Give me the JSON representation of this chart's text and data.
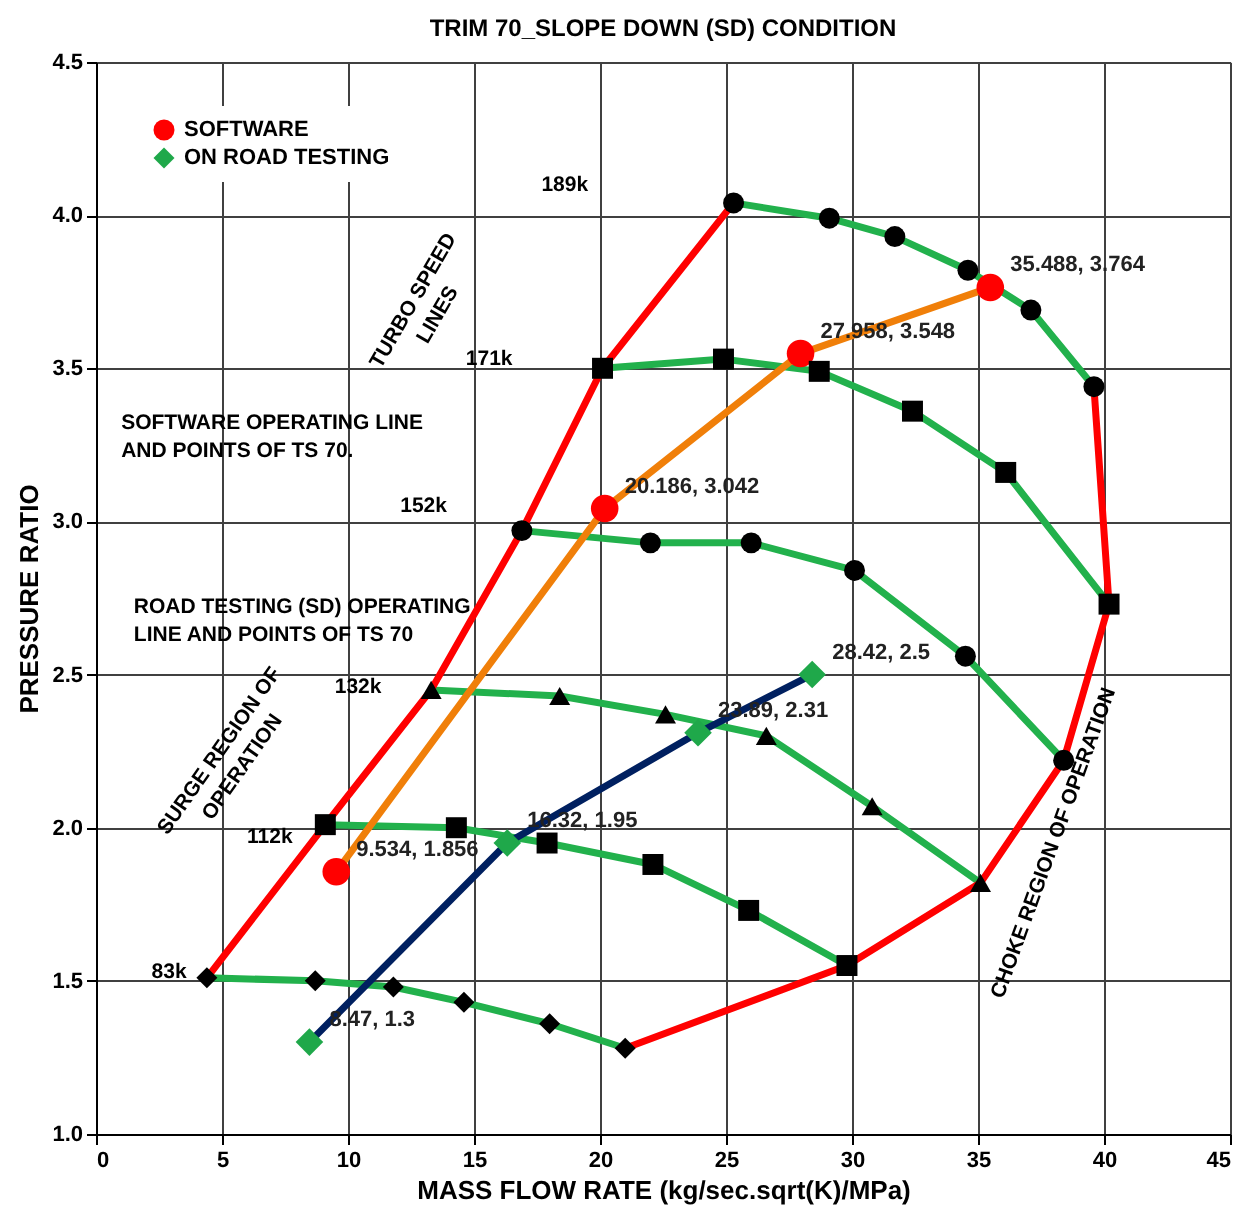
{
  "chart_data": {
    "type": "line",
    "title": "TRIM  70_SLOPE DOWN (SD) CONDITION",
    "xlabel": "MASS FLOW RATE (kg/sec.sqrt(K)/MPa)",
    "ylabel": "PRESSURE RATIO",
    "xlim": [
      0,
      45
    ],
    "xticks": [
      0,
      5,
      10,
      15,
      20,
      25,
      30,
      35,
      40,
      45
    ],
    "ylim": [
      1.0,
      4.5
    ],
    "yticks": [
      {
        "value": 1.0,
        "label": "1.0"
      },
      {
        "value": 1.5,
        "label": "1.5"
      },
      {
        "value": 2.0,
        "label": "2.0"
      },
      {
        "value": 2.5,
        "label": "2.5"
      },
      {
        "value": 3.0,
        "label": "3.0"
      },
      {
        "value": 3.5,
        "label": "3.5"
      },
      {
        "value": 4.0,
        "label": "4.0"
      },
      {
        "value": 4.5,
        "label": "4.5"
      }
    ],
    "grid": true,
    "legend": "top left",
    "line_style": "solid",
    "series": [
      {
        "color": "#22b14c",
        "colors": [
          "#000000",
          "#000000",
          "#000000",
          "#000000",
          "#000000",
          "#000000"
        ],
        "marker": "diamond",
        "x": [
          4.4,
          8.7,
          11.8,
          14.6,
          18.0,
          21.0
        ],
        "values": [
          1.51,
          1.5,
          1.48,
          1.43,
          1.36,
          1.28
        ]
      },
      {
        "color": "#22b14c",
        "colors": [
          "#000000",
          "#000000",
          "#000000",
          "#000000",
          "#000000",
          "#000000"
        ],
        "marker": "square",
        "x": [
          9.1,
          14.3,
          17.9,
          22.1,
          25.9,
          29.8
        ],
        "values": [
          2.01,
          2.0,
          1.95,
          1.88,
          1.73,
          1.55
        ]
      },
      {
        "color": "#22b14c",
        "colors": [
          "#000000",
          "#000000",
          "#000000",
          "#000000",
          "#000000",
          "#000000"
        ],
        "marker": "triangle",
        "x": [
          13.3,
          18.4,
          22.6,
          26.6,
          30.8,
          35.1
        ],
        "values": [
          2.45,
          2.43,
          2.37,
          2.3,
          2.07,
          1.82
        ]
      },
      {
        "color": "#22b14c",
        "colors": [
          "#000000",
          "#000000",
          "#000000",
          "#000000",
          "#000000",
          "#000000"
        ],
        "marker": "circle",
        "x": [
          16.9,
          22.0,
          26.0,
          30.1,
          34.5,
          38.4
        ],
        "values": [
          2.97,
          2.93,
          2.93,
          2.84,
          2.56,
          2.22
        ]
      },
      {
        "color": "#22b14c",
        "colors": [
          "#000000",
          "#000000",
          "#000000",
          "#000000",
          "#000000",
          "#000000"
        ],
        "marker": "square",
        "x": [
          20.1,
          24.9,
          28.7,
          32.4,
          36.1,
          40.2
        ],
        "values": [
          3.5,
          3.53,
          3.49,
          3.36,
          3.16,
          2.73
        ]
      },
      {
        "color": "#22b14c",
        "colors": [
          "#000000",
          "#000000",
          "#000000",
          "#000000",
          "#000000",
          "#000000"
        ],
        "marker": "circle",
        "x": [
          25.3,
          29.1,
          31.7,
          34.6,
          37.1,
          39.6
        ],
        "values": [
          4.04,
          3.99,
          3.93,
          3.82,
          3.69,
          3.44
        ]
      },
      {
        "color": "#ff0000",
        "marker": "none",
        "x": [
          4.4,
          9.1,
          13.3,
          16.9,
          20.1,
          25.3
        ],
        "values": [
          1.51,
          2.01,
          2.45,
          2.97,
          3.5,
          4.04
        ]
      },
      {
        "color": "#ff0000",
        "marker": "none",
        "x": [
          21.0,
          29.8,
          35.1,
          38.4,
          40.2,
          39.6
        ],
        "values": [
          1.28,
          1.55,
          1.82,
          2.22,
          2.73,
          3.44
        ]
      },
      {
        "name": "SOFTWARE",
        "color": "#f07f09",
        "colors": [
          "#ff0000",
          "#ff0000",
          "#ff0000",
          "#ff0000"
        ],
        "marker": "circle",
        "x": [
          9.534,
          20.186,
          27.958,
          35.488
        ],
        "values": [
          1.856,
          3.042,
          3.548,
          3.764
        ],
        "value_labels": [
          "9.534, 1.856",
          "20.186, 3.042",
          "27.958, 3.548",
          "35.488, 3.764"
        ]
      },
      {
        "name": "ON  ROAD TESTING",
        "color": "#002060",
        "colors": [
          "#1fa84a",
          "#1fa84a",
          "#1fa84a",
          "#1fa84a"
        ],
        "marker": "diamond",
        "x": [
          8.47,
          16.32,
          23.89,
          28.42
        ],
        "values": [
          1.3,
          1.95,
          2.31,
          2.5
        ],
        "value_labels": [
          "8.47, 1.3",
          "16.32, 1.95",
          "23.89, 2.31",
          "28.42, 2.5"
        ]
      }
    ],
    "annotations": [
      "189k",
      "171k",
      "152k",
      "132k",
      "112k",
      "83k",
      "TURBO SPEED LINES",
      "SOFTWARE OPERATING LINE AND POINTS OF TS 70.",
      "ROAD TESTING (SD)  OPERATING LINE AND POINTS OF TS 70",
      "SURGE REGION OF OPERATION",
      "CHOKE REGION OF OPERATION"
    ]
  }
}
